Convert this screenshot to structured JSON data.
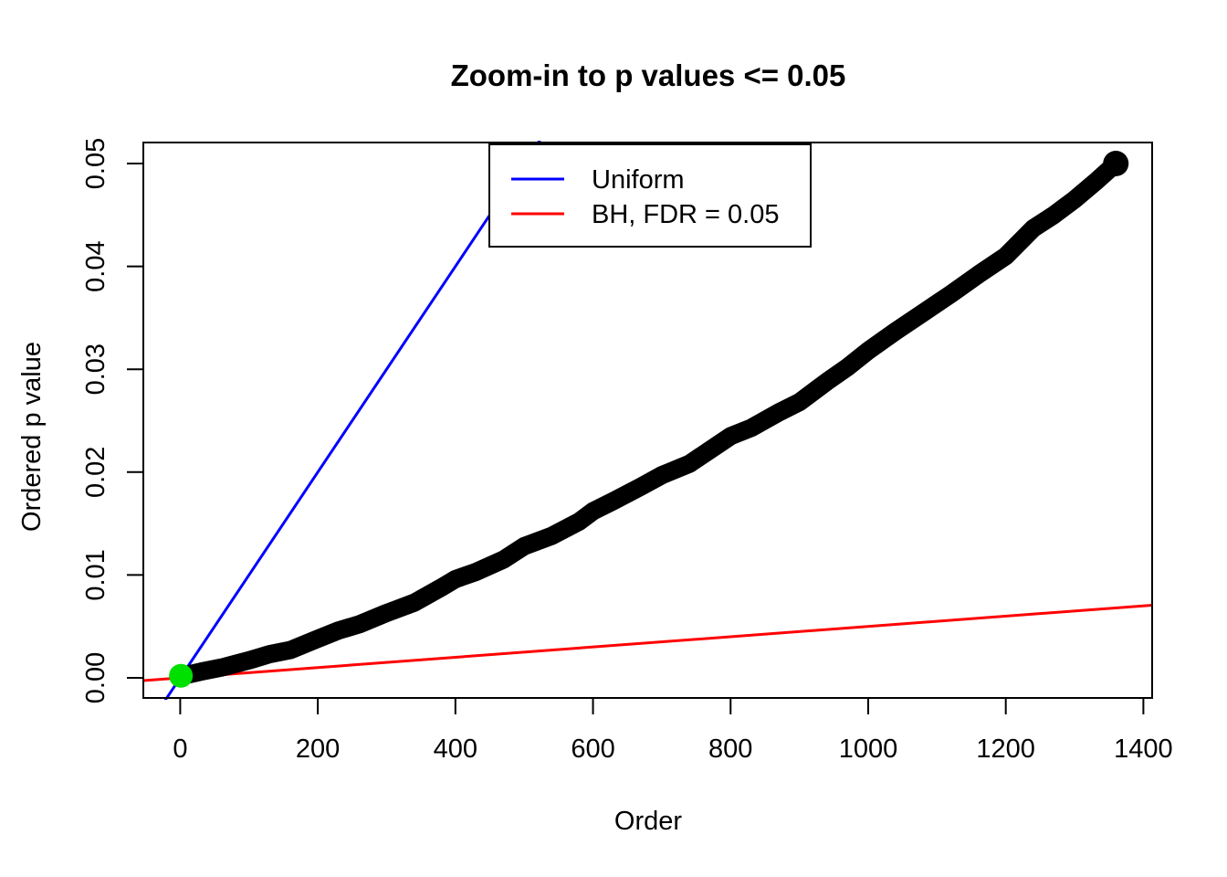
{
  "title": "Zoom-in to p values <= 0.05",
  "colors": {
    "background": "#ffffff",
    "axis": "#000000",
    "curve": "#000000",
    "uniform_line": "#0000ff",
    "bh_line": "#ff0000",
    "significant_point": "#00e000"
  },
  "chart_data": {
    "type": "scatter",
    "title": "Zoom-in to p values <= 0.05",
    "xlabel": "Order",
    "ylabel": "Ordered p value",
    "xlim": [
      -54,
      1414
    ],
    "ylim": [
      -0.002,
      0.052
    ],
    "grid": false,
    "x_ticks": [
      0,
      200,
      400,
      600,
      800,
      1000,
      1200,
      1400
    ],
    "x_tick_labels": [
      "0",
      "200",
      "400",
      "600",
      "800",
      "1000",
      "1200",
      "1400"
    ],
    "y_ticks": [
      0,
      0.01,
      0.02,
      0.03,
      0.04,
      0.05
    ],
    "y_tick_labels": [
      "0.00",
      "0.01",
      "0.02",
      "0.03",
      "0.04",
      "0.05"
    ],
    "legend": {
      "position": "top-center",
      "entries": [
        {
          "label": "Uniform",
          "color": "#0000ff"
        },
        {
          "label": "BH, FDR = 0.05",
          "color": "#ff0000"
        }
      ]
    },
    "series": [
      {
        "name": "uniform-expectation",
        "legend_label": "Uniform",
        "type": "abline",
        "color": "#0000ff",
        "intercept": 0,
        "slope": 0.0001
      },
      {
        "name": "bh-threshold",
        "legend_label": "BH, FDR = 0.05",
        "type": "abline",
        "color": "#ff0000",
        "intercept": 0,
        "slope": 5e-06
      },
      {
        "name": "ordered-p-values",
        "type": "line",
        "color": "#000000",
        "linewidth": 20,
        "end_dot_radius": 14,
        "points": [
          [
            5,
            0.0002
          ],
          [
            10,
            0.0003
          ],
          [
            30,
            0.0006
          ],
          [
            60,
            0.001
          ],
          [
            100,
            0.0017
          ],
          [
            130,
            0.0023
          ],
          [
            160,
            0.0027
          ],
          [
            200,
            0.0038
          ],
          [
            230,
            0.0046
          ],
          [
            260,
            0.0052
          ],
          [
            300,
            0.0063
          ],
          [
            340,
            0.0073
          ],
          [
            380,
            0.0088
          ],
          [
            400,
            0.0096
          ],
          [
            430,
            0.0103
          ],
          [
            470,
            0.0115
          ],
          [
            500,
            0.0128
          ],
          [
            540,
            0.0138
          ],
          [
            580,
            0.0152
          ],
          [
            600,
            0.0162
          ],
          [
            630,
            0.0172
          ],
          [
            670,
            0.0186
          ],
          [
            700,
            0.0197
          ],
          [
            740,
            0.0208
          ],
          [
            780,
            0.0226
          ],
          [
            800,
            0.0235
          ],
          [
            830,
            0.0243
          ],
          [
            870,
            0.0258
          ],
          [
            900,
            0.0268
          ],
          [
            940,
            0.0288
          ],
          [
            970,
            0.0302
          ],
          [
            1000,
            0.0318
          ],
          [
            1040,
            0.0337
          ],
          [
            1080,
            0.0355
          ],
          [
            1120,
            0.0373
          ],
          [
            1160,
            0.0392
          ],
          [
            1200,
            0.041
          ],
          [
            1240,
            0.0437
          ],
          [
            1270,
            0.045
          ],
          [
            1300,
            0.0465
          ],
          [
            1330,
            0.0482
          ],
          [
            1360,
            0.05
          ]
        ]
      },
      {
        "name": "bh-significant",
        "type": "scatter",
        "color": "#00e000",
        "radius": 13,
        "points": [
          [
            1,
            0.0002
          ]
        ]
      }
    ]
  }
}
